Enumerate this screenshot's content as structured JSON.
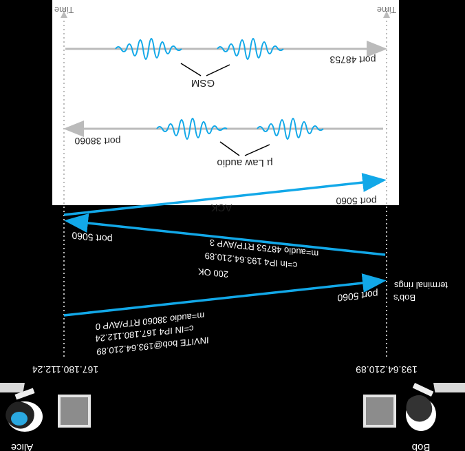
{
  "top_left_time": "Time",
  "top_right_time": "Time",
  "left_ip": "167.180.112.24",
  "right_ip": "193.64.210.89",
  "alice_label": "Alice",
  "bob_label": "Bob",
  "upper_stream": {
    "port": "port 48753",
    "codec": "GSM"
  },
  "lower_stream": {
    "port": "port 38060",
    "codec": "µ Law audio"
  },
  "ack": {
    "port": "port 5060",
    "label": "ACK"
  },
  "ok": {
    "port_left": "port 5060",
    "line1": "200 OK",
    "line2": "c=In IP4 193.64.210.89",
    "line3": "m=audio 48753 RTP/AVP 3"
  },
  "invite": {
    "port_right": "port 5060",
    "line1": "INVITE bob@193.64.210.89",
    "line2": "c=IN IP4 167.180.112.24",
    "line3": "m=audio 38060 RTP/AVP 0"
  },
  "bob_event": {
    "line1": "Bob's",
    "line2": "terminal rings"
  },
  "colors": {
    "arrow_blue": "#12a8e8",
    "arrow_gray": "#bbbbbb",
    "wave_blue": "#12a8e8"
  },
  "icons": [
    "alice-person-icon",
    "computer-icon",
    "bob-person-icon"
  ]
}
